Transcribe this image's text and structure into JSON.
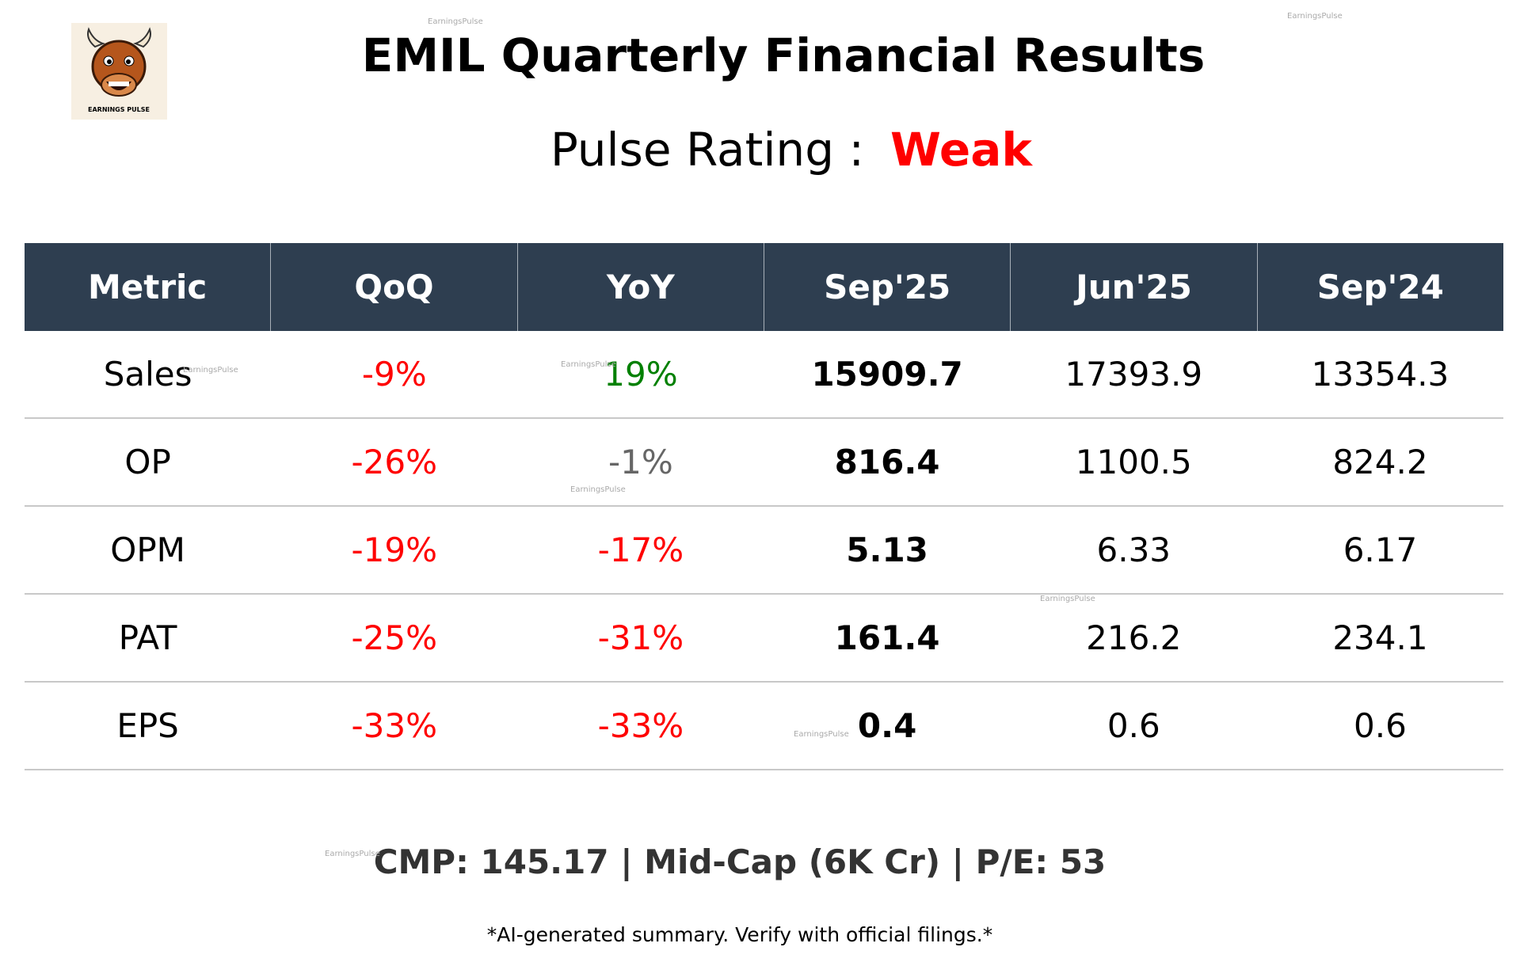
{
  "header": {
    "title": "EMIL Quarterly Financial Results",
    "rating_label": "Pulse Rating :",
    "rating_value": "Weak",
    "rating_color": "#ff0000"
  },
  "logo": {
    "text": "EARNINGS PULSE"
  },
  "watermark": "EarningsPulse",
  "table": {
    "columns": [
      "Metric",
      "QoQ",
      "YoY",
      "Sep'25",
      "Jun'25",
      "Sep'24"
    ],
    "rows": [
      {
        "cells": [
          "Sales",
          "-9%",
          "19%",
          "15909.7",
          "17393.9",
          "13354.3"
        ],
        "colors": [
          "#000000",
          "#ff0000",
          "#008000",
          "#000000",
          "#000000",
          "#000000"
        ]
      },
      {
        "cells": [
          "OP",
          "-26%",
          "-1%",
          "816.4",
          "1100.5",
          "824.2"
        ],
        "colors": [
          "#000000",
          "#ff0000",
          "#666666",
          "#000000",
          "#000000",
          "#000000"
        ]
      },
      {
        "cells": [
          "OPM",
          "-19%",
          "-17%",
          "5.13",
          "6.33",
          "6.17"
        ],
        "colors": [
          "#000000",
          "#ff0000",
          "#ff0000",
          "#000000",
          "#000000",
          "#000000"
        ]
      },
      {
        "cells": [
          "PAT",
          "-25%",
          "-31%",
          "161.4",
          "216.2",
          "234.1"
        ],
        "colors": [
          "#000000",
          "#ff0000",
          "#ff0000",
          "#000000",
          "#000000",
          "#000000"
        ]
      },
      {
        "cells": [
          "EPS",
          "-33%",
          "-33%",
          "0.4",
          "0.6",
          "0.6"
        ],
        "colors": [
          "#000000",
          "#ff0000",
          "#ff0000",
          "#000000",
          "#000000",
          "#000000"
        ]
      }
    ]
  },
  "footer": {
    "summary": "CMP: 145.17 | Mid-Cap (6K Cr) | P/E: 53",
    "disclaimer": "*AI-generated summary. Verify with official filings.*"
  }
}
